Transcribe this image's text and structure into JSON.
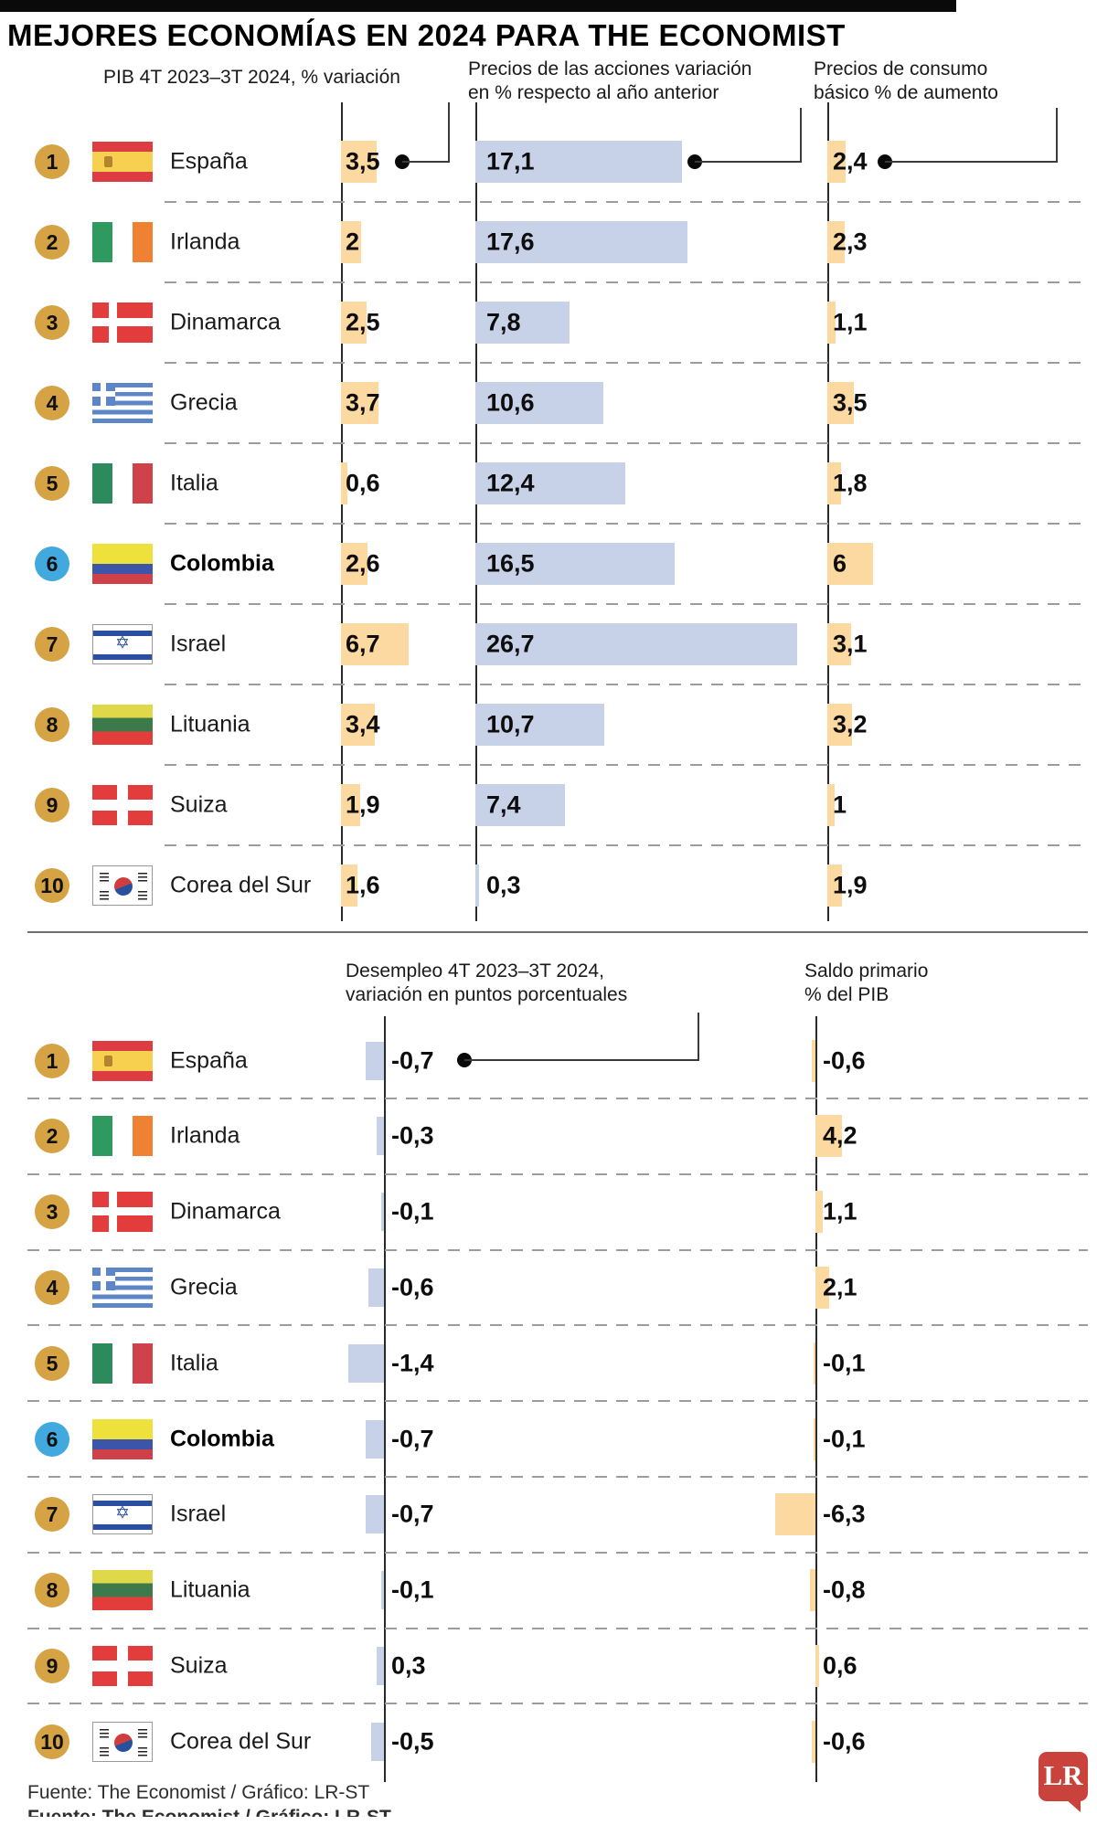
{
  "title": "MEJORES ECONOMÍAS EN 2024 PARA THE ECONOMIST",
  "headers": {
    "gdp": "PIB 4T 2023–3T 2024, %  variación",
    "stocks_line1": "Precios de las acciones variación",
    "stocks_line2": "en % respecto al año anterior",
    "prices_line1": "Precios de consumo",
    "prices_line2": "básico % de aumento",
    "unemployment_line1": "Desempleo 4T 2023–3T 2024,",
    "unemployment_line2": "variación en puntos porcentuales",
    "balance_line1": "Saldo primario",
    "balance_line2": "% del PIB"
  },
  "rows": [
    {
      "rank": "1",
      "country": "España",
      "flag": "es",
      "highlight": false,
      "pib": "3,5",
      "acciones": "17,1",
      "consumo": "2,4",
      "desempleo": "-0,7",
      "saldo": "-0,6"
    },
    {
      "rank": "2",
      "country": "Irlanda",
      "flag": "ie",
      "highlight": false,
      "pib": "2",
      "acciones": "17,6",
      "consumo": "2,3",
      "desempleo": "-0,3",
      "saldo": "4,2"
    },
    {
      "rank": "3",
      "country": "Dinamarca",
      "flag": "dk",
      "highlight": false,
      "pib": "2,5",
      "acciones": "7,8",
      "consumo": "1,1",
      "desempleo": "-0,1",
      "saldo": "1,1"
    },
    {
      "rank": "4",
      "country": "Grecia",
      "flag": "gr",
      "highlight": false,
      "pib": "3,7",
      "acciones": "10,6",
      "consumo": "3,5",
      "desempleo": "-0,6",
      "saldo": "2,1"
    },
    {
      "rank": "5",
      "country": "Italia",
      "flag": "it",
      "highlight": false,
      "pib": "0,6",
      "acciones": "12,4",
      "consumo": "1,8",
      "desempleo": "-1,4",
      "saldo": "-0,1"
    },
    {
      "rank": "6",
      "country": "Colombia",
      "flag": "co",
      "highlight": true,
      "pib": "2,6",
      "acciones": "16,5",
      "consumo": "6",
      "desempleo": "-0,7",
      "saldo": "-0,1"
    },
    {
      "rank": "7",
      "country": "Israel",
      "flag": "il",
      "highlight": false,
      "pib": "6,7",
      "acciones": "26,7",
      "consumo": "3,1",
      "desempleo": "-0,7",
      "saldo": "-6,3"
    },
    {
      "rank": "8",
      "country": "Lituania",
      "flag": "lt",
      "highlight": false,
      "pib": "3,4",
      "acciones": "10,7",
      "consumo": "3,2",
      "desempleo": "-0,1",
      "saldo": "-0,8"
    },
    {
      "rank": "9",
      "country": "Suiza",
      "flag": "ch",
      "highlight": false,
      "pib": "1,9",
      "acciones": "7,4",
      "consumo": "1",
      "desempleo": "0,3",
      "saldo": "0,6"
    },
    {
      "rank": "10",
      "country": "Corea del Sur",
      "flag": "kr",
      "highlight": false,
      "pib": "1,6",
      "acciones": "0,3",
      "consumo": "1,9",
      "desempleo": "-0,5",
      "saldo": "-0,6"
    }
  ],
  "footer": {
    "source": "Fuente: The Economist / Gráfico: LR-ST",
    "logo": "LR"
  },
  "colors": {
    "bar_orange": "#fbd9a1",
    "bar_blue": "#c7d2e8",
    "rank_gold": "#d6a344",
    "rank_highlight": "#41a9dd",
    "logo_red": "#c9423c"
  },
  "chart_data": {
    "type": "bar",
    "title": "MEJORES ECONOMÍAS EN 2024 PARA THE ECONOMIST",
    "categories": [
      "España",
      "Irlanda",
      "Dinamarca",
      "Grecia",
      "Italia",
      "Colombia",
      "Israel",
      "Lituania",
      "Suiza",
      "Corea del Sur"
    ],
    "ranks": [
      1,
      2,
      3,
      4,
      5,
      6,
      7,
      8,
      9,
      10
    ],
    "series": [
      {
        "name": "PIB 4T 2023–3T 2024, % variación",
        "values": [
          3.5,
          2,
          2.5,
          3.7,
          0.6,
          2.6,
          6.7,
          3.4,
          1.9,
          1.6
        ]
      },
      {
        "name": "Precios de las acciones variación en % respecto al año anterior",
        "values": [
          17.1,
          17.6,
          7.8,
          10.6,
          12.4,
          16.5,
          26.7,
          10.7,
          7.4,
          0.3
        ]
      },
      {
        "name": "Precios de consumo básico % de aumento",
        "values": [
          2.4,
          2.3,
          1.1,
          3.5,
          1.8,
          6,
          3.1,
          3.2,
          1,
          1.9
        ]
      },
      {
        "name": "Desempleo 4T 2023–3T 2024, variación en puntos porcentuales",
        "values": [
          -0.7,
          -0.3,
          -0.1,
          -0.6,
          -1.4,
          -0.7,
          -0.7,
          -0.1,
          0.3,
          -0.5
        ]
      },
      {
        "name": "Saldo primario % del PIB",
        "values": [
          -0.6,
          4.2,
          1.1,
          2.1,
          -0.1,
          -0.1,
          -6.3,
          -0.8,
          0.6,
          -0.6
        ]
      }
    ],
    "highlighted_category": "Colombia",
    "orientation": "horizontal",
    "legend_position": "none",
    "grid": false,
    "source": "Fuente: The Economist / Gráfico: LR-ST"
  }
}
